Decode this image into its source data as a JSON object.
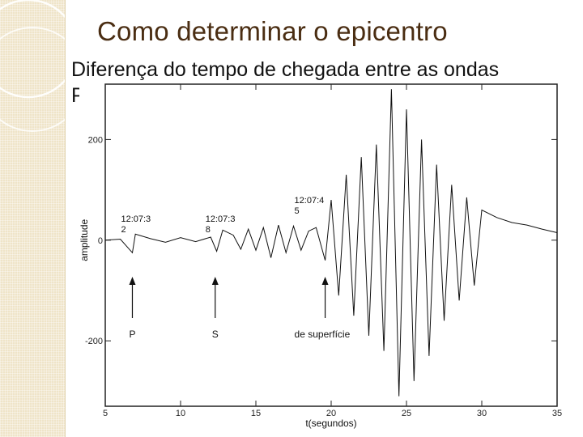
{
  "slide": {
    "title": "Como determinar o epicentro",
    "subtitle": "Diferença do tempo de chegada entre as ondas",
    "subtitle_cut": "P"
  },
  "chart_data": {
    "type": "line",
    "xlabel": "t(segundos)",
    "ylabel": "amplitude",
    "xlim": [
      5,
      35
    ],
    "ylim": [
      -330,
      310
    ],
    "xticks": [
      5,
      10,
      15,
      20,
      25,
      30,
      35
    ],
    "yticks": [
      200,
      0,
      -200
    ],
    "grid": false,
    "series": [
      {
        "x": [
          5,
          6,
          6.8,
          7,
          8,
          9,
          10,
          11,
          12,
          12.4,
          12.8,
          13.5,
          14,
          14.5,
          15,
          15.5,
          16,
          16.5,
          17,
          17.5,
          18,
          18.5,
          19,
          19.6,
          20,
          20.5,
          21,
          21.5,
          22,
          22.5,
          23,
          23.5,
          24,
          24.5,
          25,
          25.5,
          26,
          26.5,
          27,
          27.5,
          28,
          28.5,
          29,
          29.5,
          30,
          31,
          32,
          33,
          34,
          35
        ],
        "y": [
          0,
          2,
          -25,
          12,
          3,
          -4,
          5,
          -3,
          6,
          -22,
          20,
          10,
          -18,
          22,
          -20,
          25,
          -35,
          30,
          -25,
          28,
          -20,
          18,
          25,
          -40,
          80,
          -110,
          130,
          -150,
          165,
          -190,
          190,
          -220,
          300,
          -310,
          260,
          -280,
          200,
          -230,
          150,
          -160,
          110,
          -120,
          85,
          -90,
          60,
          45,
          35,
          30,
          22,
          15
        ]
      }
    ],
    "markers": [
      {
        "x": 6.8,
        "label": "P",
        "time": "12:07:32"
      },
      {
        "x": 12.3,
        "label": "S",
        "time": "12:07:38"
      },
      {
        "x": 19.6,
        "label": "de superfície",
        "time": "12:07:45"
      }
    ],
    "time_annotations": [
      {
        "line1": "12:07:3",
        "line2": "2"
      },
      {
        "line1": "12:07:3",
        "line2": "8"
      },
      {
        "line1": "12:07:4",
        "line2": "5"
      }
    ]
  }
}
